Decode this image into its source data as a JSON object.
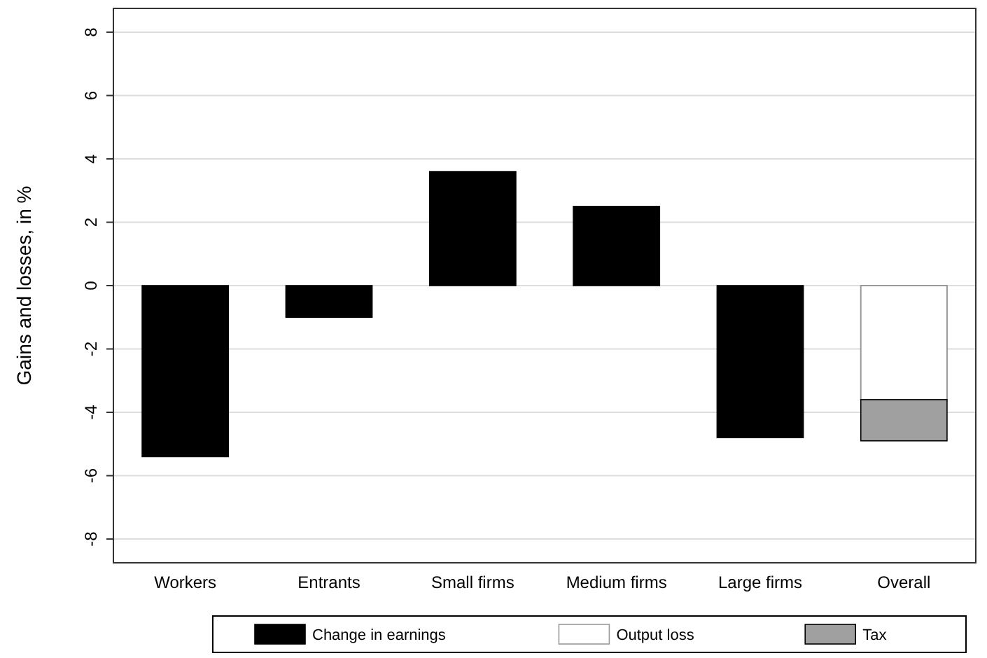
{
  "chart_data": {
    "type": "bar",
    "ylabel": "Gains and losses, in %",
    "categories": [
      "Workers",
      "Entrants",
      "Small firms",
      "Medium firms",
      "Large firms",
      "Overall"
    ],
    "stacked": true,
    "series": [
      {
        "name": "Change in earnings",
        "color": "#000000",
        "values": [
          -5.4,
          -1.0,
          3.6,
          2.5,
          -4.8,
          null
        ]
      },
      {
        "name": "Output loss",
        "color": "#ffffff",
        "values": [
          null,
          null,
          null,
          null,
          null,
          -3.6
        ]
      },
      {
        "name": "Tax",
        "color": "#a0a0a0",
        "values": [
          null,
          null,
          null,
          null,
          null,
          -1.3
        ]
      }
    ],
    "ylim": [
      -8.75,
      8.75
    ],
    "yticks": [
      -8,
      -6,
      -4,
      -2,
      0,
      2,
      4,
      6,
      8
    ],
    "grid": "y",
    "legend": "bottom"
  }
}
